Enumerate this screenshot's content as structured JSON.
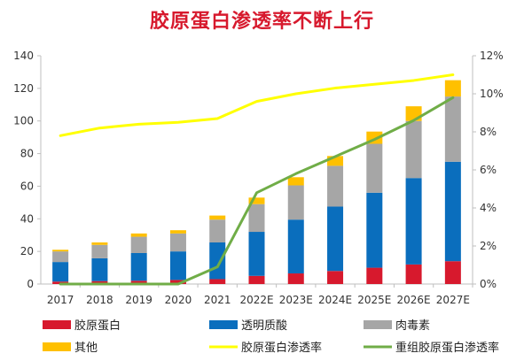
{
  "chart_data": {
    "type": "bar",
    "title": "胶原蛋白渗透率不断上行",
    "categories": [
      "2017",
      "2018",
      "2019",
      "2020",
      "2021",
      "2022E",
      "2023E",
      "2024E",
      "2025E",
      "2026E",
      "2027E"
    ],
    "stacked": true,
    "series": [
      {
        "name": "胶原蛋白",
        "type": "bar",
        "axis": "left",
        "color": "#d7192d",
        "values": [
          1.5,
          1.8,
          2,
          2.5,
          3,
          5,
          6.5,
          8,
          10,
          12,
          14
        ]
      },
      {
        "name": "透明质酸",
        "type": "bar",
        "axis": "left",
        "color": "#0a6ebd",
        "values": [
          12,
          14,
          17,
          17.5,
          22.5,
          27,
          33,
          39.5,
          46,
          53,
          61
        ]
      },
      {
        "name": "肉毒素",
        "type": "bar",
        "axis": "left",
        "color": "#a6a6a6",
        "values": [
          6.5,
          8.2,
          10,
          11,
          14,
          17,
          21,
          25,
          30,
          35,
          40
        ]
      },
      {
        "name": "其他",
        "type": "bar",
        "axis": "left",
        "color": "#ffc000",
        "values": [
          1,
          1.5,
          2,
          2,
          2.5,
          4,
          5,
          6,
          7.5,
          9,
          10
        ]
      },
      {
        "name": "胶原蛋白渗透率",
        "type": "line",
        "axis": "right",
        "color": "#ffff00",
        "values": [
          7.8,
          8.2,
          8.4,
          8.5,
          8.7,
          9.6,
          10.0,
          10.3,
          10.5,
          10.7,
          11.0
        ]
      },
      {
        "name": "重组胶原蛋白渗透率",
        "type": "line",
        "axis": "right",
        "color": "#70ad47",
        "values": [
          0,
          0,
          0,
          0,
          0.9,
          4.8,
          5.8,
          6.7,
          7.6,
          8.6,
          9.8
        ]
      }
    ],
    "y_left": {
      "ylim": [
        0,
        140
      ],
      "ticks": [
        "0",
        "20",
        "40",
        "60",
        "80",
        "100",
        "120",
        "140"
      ]
    },
    "y_right": {
      "ylim": [
        0,
        12
      ],
      "ticks": [
        "0%",
        "2%",
        "4%",
        "6%",
        "8%",
        "10%",
        "12%"
      ]
    },
    "grid": false,
    "legend_position": "bottom"
  }
}
